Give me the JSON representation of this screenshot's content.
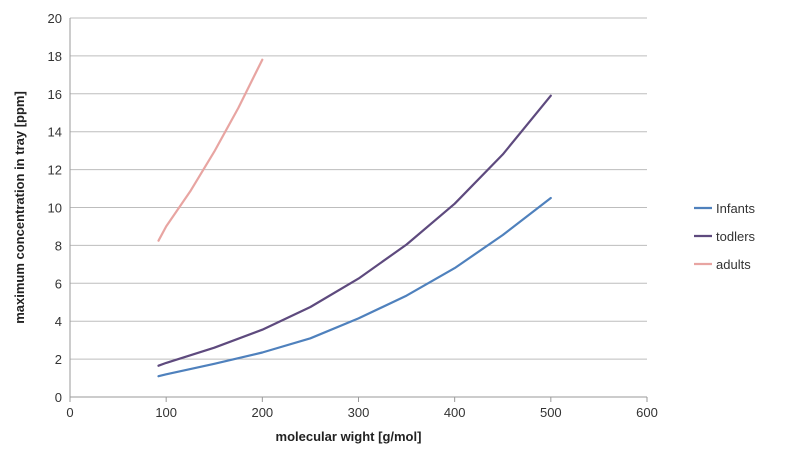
{
  "chart_data": {
    "type": "line",
    "title": "",
    "xlabel": "molecular wight [g/mol]",
    "ylabel": "maximum  concentration in tray [ppm]",
    "xlim": [
      0,
      600
    ],
    "ylim": [
      0,
      20
    ],
    "xticks": [
      0,
      100,
      200,
      300,
      400,
      500,
      600
    ],
    "yticks": [
      0,
      2,
      4,
      6,
      8,
      10,
      12,
      14,
      16,
      18,
      20
    ],
    "grid": "horizontal",
    "legend_position": "right",
    "series": [
      {
        "name": "Infants",
        "color": "#4f81bd",
        "x": [
          92,
          100,
          150,
          200,
          250,
          300,
          350,
          400,
          450,
          500
        ],
        "y": [
          1.1,
          1.2,
          1.75,
          2.35,
          3.1,
          4.15,
          5.35,
          6.8,
          8.55,
          10.5
        ]
      },
      {
        "name": "todlers",
        "color": "#5e4a7e",
        "x": [
          92,
          100,
          150,
          200,
          250,
          300,
          350,
          400,
          450,
          500
        ],
        "y": [
          1.65,
          1.8,
          2.6,
          3.55,
          4.75,
          6.25,
          8.05,
          10.2,
          12.8,
          15.9
        ]
      },
      {
        "name": "adults",
        "color": "#e8a5a2",
        "x": [
          92,
          100,
          125,
          150,
          175,
          200
        ],
        "y": [
          8.25,
          9.0,
          10.85,
          12.95,
          15.25,
          17.8
        ]
      }
    ]
  }
}
